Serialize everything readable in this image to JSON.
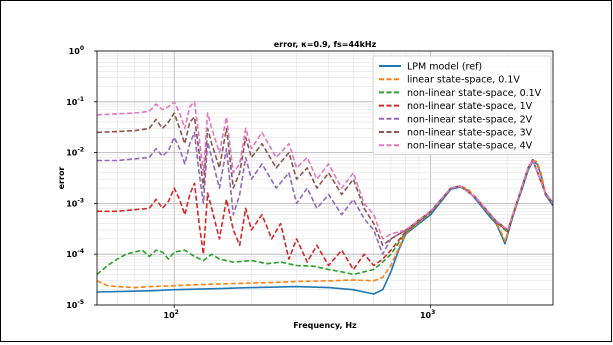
{
  "chart_data": {
    "type": "line",
    "title": "error, κ=0.9, fs=44kHz",
    "xlabel": "Frequency, Hz",
    "ylabel": "error",
    "xscale": "log",
    "yscale": "log",
    "xlim": [
      50,
      3000
    ],
    "ylim": [
      1e-05,
      1
    ],
    "grid": true,
    "legend_position": "upper right",
    "x_ticks": [
      {
        "value": 100,
        "base": "10",
        "exp": "2"
      },
      {
        "value": 1000,
        "base": "10",
        "exp": "3"
      }
    ],
    "y_ticks": [
      {
        "value": 1,
        "base": "10",
        "exp": "0"
      },
      {
        "value": 0.1,
        "base": "10",
        "exp": "-1"
      },
      {
        "value": 0.01,
        "base": "10",
        "exp": "-2"
      },
      {
        "value": 0.001,
        "base": "10",
        "exp": "-3"
      },
      {
        "value": 0.0001,
        "base": "10",
        "exp": "-4"
      },
      {
        "value": 1e-05,
        "base": "10",
        "exp": "-5"
      }
    ],
    "series": [
      {
        "name": "LPM model (ref)",
        "color": "#1f77b4",
        "dash": "solid",
        "x": [
          50,
          80,
          100,
          150,
          200,
          300,
          400,
          500,
          550,
          600,
          650,
          700,
          750,
          800,
          900,
          1000,
          1100,
          1200,
          1300,
          1400,
          1500,
          1600,
          1700,
          1800,
          1900,
          1950,
          2000,
          2100,
          2200,
          2300,
          2400,
          2500,
          2600,
          2700,
          2800,
          3000
        ],
        "y": [
          1.8e-05,
          1.9e-05,
          2e-05,
          2.1e-05,
          2.2e-05,
          2.3e-05,
          2.2e-05,
          2e-05,
          1.8e-05,
          1.65e-05,
          2e-05,
          4.5e-05,
          0.00012,
          0.00025,
          0.0004,
          0.0006,
          0.0011,
          0.0019,
          0.0021,
          0.0018,
          0.0012,
          0.0008,
          0.00055,
          0.0004,
          0.00022,
          0.00016,
          0.00025,
          0.0006,
          0.0012,
          0.0023,
          0.0045,
          0.0067,
          0.006,
          0.0035,
          0.0015,
          0.0009
        ]
      },
      {
        "name": "linear state-space, 0.1V",
        "color": "#ff7f0e",
        "dash": "dashed",
        "x": [
          50,
          55,
          60,
          70,
          80,
          100,
          120,
          150,
          200,
          250,
          300,
          400,
          500,
          600,
          650,
          700,
          750,
          800,
          900,
          1000,
          1100,
          1200,
          1300,
          1400,
          1500,
          1600,
          1700,
          1800,
          1900,
          1950,
          2000,
          2100,
          2200,
          2300,
          2400,
          2500,
          2600,
          2700,
          2800,
          3000
        ],
        "y": [
          3e-05,
          2.4e-05,
          2.3e-05,
          2.2e-05,
          2.3e-05,
          2.4e-05,
          2.5e-05,
          2.6e-05,
          2.7e-05,
          2.8e-05,
          2.9e-05,
          3e-05,
          3.1e-05,
          3e-05,
          3.5e-05,
          6e-05,
          0.00013,
          0.00026,
          0.00042,
          0.00065,
          0.0012,
          0.002,
          0.0022,
          0.0019,
          0.0013,
          0.00085,
          0.0006,
          0.00042,
          0.00025,
          0.00018,
          0.00027,
          0.00065,
          0.0013,
          0.0025,
          0.0048,
          0.0072,
          0.0065,
          0.0038,
          0.0016,
          0.001
        ]
      },
      {
        "name": "non-linear state-space, 0.1V",
        "color": "#2ca02c",
        "dash": "dashed",
        "x": [
          50,
          55,
          60,
          65,
          70,
          75,
          80,
          85,
          90,
          95,
          100,
          110,
          120,
          130,
          140,
          150,
          170,
          200,
          230,
          260,
          300,
          350,
          400,
          450,
          500,
          550,
          600,
          650,
          700,
          800,
          1000,
          1200,
          1300,
          1500,
          1800,
          2000,
          2400,
          2500,
          2800,
          3000
        ],
        "y": [
          4e-05,
          6e-05,
          8e-05,
          0.0001,
          0.00011,
          0.00012,
          9e-05,
          0.00012,
          0.00011,
          8e-05,
          0.00011,
          0.00012,
          9e-05,
          7.5e-05,
          0.0001,
          8e-05,
          7e-05,
          7.5e-05,
          6.5e-05,
          7e-05,
          6e-05,
          5.8e-05,
          5e-05,
          4.5e-05,
          4e-05,
          4.5e-05,
          5e-05,
          7e-05,
          0.0001,
          0.00027,
          0.00066,
          0.002,
          0.0022,
          0.0013,
          0.00043,
          0.00027,
          0.0049,
          0.0072,
          0.0016,
          0.001
        ]
      },
      {
        "name": "non-linear state-space, 1V",
        "color": "#d62728",
        "dash": "dashed",
        "x": [
          50,
          60,
          70,
          80,
          85,
          90,
          95,
          100,
          105,
          110,
          115,
          120,
          125,
          130,
          135,
          140,
          150,
          160,
          170,
          180,
          190,
          200,
          220,
          240,
          260,
          280,
          300,
          330,
          360,
          400,
          450,
          500,
          550,
          600,
          650,
          700,
          800,
          1000,
          1200,
          1300,
          1500,
          1800,
          2000,
          2400,
          2500,
          2800,
          3000
        ],
        "y": [
          0.0007,
          0.0007,
          0.00075,
          0.0008,
          0.0012,
          0.0008,
          0.0011,
          0.002,
          0.0012,
          0.0006,
          0.0015,
          0.0025,
          0.0004,
          0.0001,
          0.0016,
          0.0008,
          0.0002,
          0.0012,
          0.0003,
          0.00015,
          0.0008,
          0.0003,
          0.0006,
          0.0002,
          0.0004,
          8e-05,
          0.0002,
          7e-05,
          0.00015,
          6e-05,
          0.00012,
          5e-05,
          0.0001,
          6e-05,
          8e-05,
          0.00012,
          0.00028,
          0.00068,
          0.002,
          0.0022,
          0.0013,
          0.00044,
          0.00028,
          0.005,
          0.0072,
          0.0016,
          0.001
        ]
      },
      {
        "name": "non-linear state-space, 2V",
        "color": "#9467bd",
        "dash": "dashed",
        "x": [
          50,
          60,
          70,
          80,
          85,
          90,
          95,
          100,
          105,
          110,
          115,
          120,
          125,
          130,
          135,
          140,
          150,
          160,
          170,
          180,
          190,
          200,
          220,
          250,
          280,
          300,
          330,
          360,
          400,
          450,
          500,
          550,
          600,
          650,
          700,
          800,
          1000,
          1200,
          1300,
          1500,
          1800,
          2000,
          2400,
          2500,
          2800,
          3000
        ],
        "y": [
          0.007,
          0.007,
          0.0075,
          0.008,
          0.012,
          0.0085,
          0.011,
          0.02,
          0.012,
          0.006,
          0.015,
          0.025,
          0.004,
          0.001,
          0.016,
          0.008,
          0.002,
          0.012,
          0.0006,
          0.0015,
          0.008,
          0.003,
          0.006,
          0.002,
          0.004,
          0.001,
          0.002,
          0.0008,
          0.0015,
          0.0006,
          0.0012,
          0.0005,
          0.0003,
          0.0001,
          0.0002,
          0.0003,
          0.0007,
          0.002,
          0.0022,
          0.0013,
          0.00045,
          0.0003,
          0.005,
          0.0072,
          0.0016,
          0.001
        ]
      },
      {
        "name": "non-linear state-space, 3V",
        "color": "#8c564b",
        "dash": "dashed",
        "x": [
          50,
          60,
          70,
          80,
          85,
          90,
          95,
          100,
          105,
          110,
          115,
          120,
          125,
          130,
          135,
          140,
          150,
          160,
          170,
          180,
          190,
          200,
          220,
          250,
          280,
          300,
          330,
          360,
          400,
          450,
          500,
          550,
          600,
          650,
          700,
          800,
          1000,
          1200,
          1300,
          1500,
          1800,
          2000,
          2400,
          2500,
          2800,
          3000
        ],
        "y": [
          0.025,
          0.026,
          0.027,
          0.03,
          0.045,
          0.03,
          0.04,
          0.06,
          0.03,
          0.015,
          0.04,
          0.05,
          0.01,
          0.002,
          0.03,
          0.015,
          0.005,
          0.03,
          0.002,
          0.004,
          0.02,
          0.008,
          0.015,
          0.005,
          0.01,
          0.003,
          0.005,
          0.002,
          0.004,
          0.0015,
          0.003,
          0.0008,
          0.0004,
          0.00015,
          0.0002,
          0.0003,
          0.0007,
          0.002,
          0.0022,
          0.0013,
          0.00045,
          0.0003,
          0.005,
          0.0072,
          0.0016,
          0.001
        ]
      },
      {
        "name": "non-linear state-space, 4V",
        "color": "#e377c2",
        "dash": "dashed",
        "x": [
          50,
          60,
          70,
          80,
          85,
          90,
          95,
          100,
          105,
          110,
          115,
          120,
          125,
          130,
          135,
          140,
          150,
          160,
          170,
          180,
          190,
          200,
          220,
          250,
          280,
          300,
          330,
          360,
          400,
          450,
          500,
          550,
          600,
          650,
          700,
          800,
          1000,
          1200,
          1300,
          1500,
          1800,
          2000,
          2400,
          2500,
          2800,
          3000
        ],
        "y": [
          0.055,
          0.058,
          0.06,
          0.065,
          0.09,
          0.07,
          0.08,
          0.1,
          0.06,
          0.03,
          0.08,
          0.1,
          0.02,
          0.004,
          0.06,
          0.03,
          0.01,
          0.05,
          0.004,
          0.006,
          0.03,
          0.012,
          0.025,
          0.008,
          0.015,
          0.005,
          0.008,
          0.003,
          0.006,
          0.002,
          0.004,
          0.001,
          0.0006,
          0.0002,
          0.00025,
          0.0003,
          0.0007,
          0.002,
          0.0022,
          0.0013,
          0.00045,
          0.0003,
          0.005,
          0.0072,
          0.0016,
          0.001
        ]
      }
    ]
  }
}
